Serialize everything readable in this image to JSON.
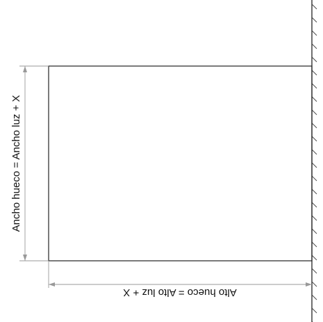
{
  "labels": {
    "width_formula": "Ancho hueco = Ancho luz + X",
    "height_formula": "Alto hueco = Alto luz + X"
  },
  "colors": {
    "stroke": "#222222",
    "dimension_line": "#999999",
    "text": "#111111"
  }
}
